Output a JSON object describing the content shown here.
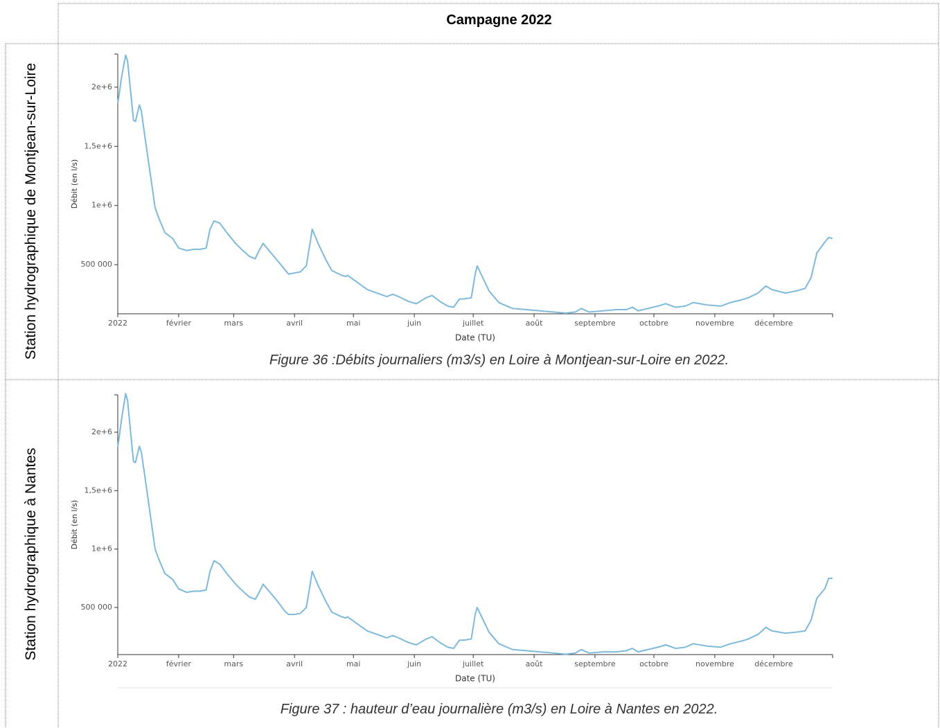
{
  "header": {
    "title": "Campagne 2022"
  },
  "rows": [
    {
      "label": "Station hydrographique de Montjean-sur-Loire",
      "caption": "Figure 36 :Débits journaliers (m3/s) en Loire à Montjean-sur-Loire en 2022."
    },
    {
      "label": "Station hydrographique à Nantes",
      "caption": "Figure 37 : hauteur d’eau journalière (m3/s) en Loire à Nantes en 2022."
    }
  ],
  "chart_data": [
    {
      "type": "line",
      "ylabel": "Débit (en l/s)",
      "xlabel": "Date (TU)",
      "color": "#7db9da",
      "xlim": [
        0,
        364
      ],
      "ylim": [
        85000,
        2280000
      ],
      "xticks": [
        {
          "value": 0,
          "label": "2022"
        },
        {
          "value": 31,
          "label": "février"
        },
        {
          "value": 59,
          "label": "mars"
        },
        {
          "value": 90,
          "label": "avril"
        },
        {
          "value": 120,
          "label": "mai"
        },
        {
          "value": 151,
          "label": "juin"
        },
        {
          "value": 181,
          "label": "juillet"
        },
        {
          "value": 212,
          "label": "août"
        },
        {
          "value": 243,
          "label": "septembre"
        },
        {
          "value": 273,
          "label": "octobre"
        },
        {
          "value": 304,
          "label": "novembre"
        },
        {
          "value": 334,
          "label": "décembre"
        }
      ],
      "yticks": [
        {
          "value": 500000,
          "label": "500 000"
        },
        {
          "value": 1000000,
          "label": "1e+6"
        },
        {
          "value": 1500000,
          "label": "1,5e+6"
        },
        {
          "value": 2000000,
          "label": "2e+6"
        }
      ],
      "x": [
        0,
        2,
        4,
        5,
        7,
        8,
        9,
        11,
        12,
        14,
        18,
        19,
        21,
        24,
        28,
        31,
        35,
        39,
        42,
        45,
        47,
        49,
        52,
        56,
        60,
        63,
        67,
        70,
        72,
        74,
        77,
        81,
        85,
        87,
        90,
        93,
        96,
        98,
        99,
        102,
        106,
        109,
        114,
        116,
        117,
        122,
        127,
        132,
        137,
        140,
        143,
        148,
        152,
        157,
        160,
        164,
        168,
        171,
        174,
        176,
        180,
        182,
        183,
        185,
        189,
        194,
        201,
        208,
        215,
        222,
        228,
        233,
        236,
        240,
        247,
        254,
        259,
        262,
        265,
        270,
        275,
        279,
        284,
        289,
        293,
        300,
        307,
        312,
        317,
        321,
        326,
        330,
        333,
        340,
        346,
        350,
        353,
        356,
        360,
        362,
        364
      ],
      "values": [
        1860000,
        2090000,
        2270000,
        2220000,
        1890000,
        1720000,
        1710000,
        1850000,
        1800000,
        1560000,
        1100000,
        980000,
        890000,
        770000,
        720000,
        640000,
        620000,
        630000,
        630000,
        640000,
        800000,
        870000,
        850000,
        760000,
        680000,
        630000,
        570000,
        550000,
        620000,
        680000,
        620000,
        540000,
        460000,
        420000,
        430000,
        440000,
        490000,
        690000,
        800000,
        680000,
        540000,
        450000,
        410000,
        400000,
        410000,
        350000,
        290000,
        260000,
        230000,
        250000,
        230000,
        190000,
        170000,
        220000,
        240000,
        190000,
        150000,
        140000,
        210000,
        210000,
        220000,
        420000,
        490000,
        420000,
        280000,
        180000,
        130000,
        120000,
        110000,
        100000,
        90000,
        100000,
        130000,
        100000,
        110000,
        120000,
        120000,
        140000,
        110000,
        130000,
        150000,
        170000,
        140000,
        150000,
        180000,
        160000,
        150000,
        180000,
        200000,
        220000,
        260000,
        320000,
        290000,
        260000,
        280000,
        300000,
        390000,
        600000,
        690000,
        730000,
        720000
      ]
    },
    {
      "type": "line",
      "ylabel": "Débit (en l/s)",
      "xlabel": "Date (TU)",
      "color": "#7db9da",
      "xlim": [
        0,
        364
      ],
      "ylim": [
        97000,
        2320000
      ],
      "xticks": [
        {
          "value": 0,
          "label": "2022"
        },
        {
          "value": 31,
          "label": "février"
        },
        {
          "value": 59,
          "label": "mars"
        },
        {
          "value": 90,
          "label": "avril"
        },
        {
          "value": 120,
          "label": "mai"
        },
        {
          "value": 151,
          "label": "juin"
        },
        {
          "value": 181,
          "label": "juillet"
        },
        {
          "value": 212,
          "label": "août"
        },
        {
          "value": 243,
          "label": "septembre"
        },
        {
          "value": 273,
          "label": "octobre"
        },
        {
          "value": 304,
          "label": "novembre"
        },
        {
          "value": 334,
          "label": "décembre"
        }
      ],
      "yticks": [
        {
          "value": 500000,
          "label": "500 000"
        },
        {
          "value": 1000000,
          "label": "1e+6"
        },
        {
          "value": 1500000,
          "label": "1,5e+6"
        },
        {
          "value": 2000000,
          "label": "2e+6"
        }
      ],
      "x": [
        0,
        2,
        4,
        5,
        7,
        8,
        9,
        11,
        12,
        14,
        18,
        19,
        21,
        24,
        28,
        31,
        35,
        39,
        42,
        45,
        47,
        49,
        52,
        56,
        60,
        63,
        67,
        70,
        72,
        74,
        77,
        81,
        85,
        87,
        90,
        93,
        96,
        98,
        99,
        102,
        106,
        109,
        114,
        116,
        117,
        122,
        127,
        132,
        137,
        140,
        143,
        148,
        152,
        157,
        160,
        164,
        168,
        171,
        174,
        176,
        180,
        182,
        183,
        185,
        189,
        194,
        201,
        208,
        215,
        222,
        228,
        233,
        236,
        240,
        247,
        254,
        259,
        262,
        265,
        270,
        275,
        279,
        284,
        289,
        293,
        300,
        307,
        312,
        317,
        321,
        326,
        330,
        333,
        340,
        346,
        350,
        353,
        356,
        360,
        362,
        364
      ],
      "values": [
        1870000,
        2120000,
        2330000,
        2270000,
        1920000,
        1750000,
        1740000,
        1880000,
        1830000,
        1600000,
        1120000,
        1000000,
        910000,
        790000,
        740000,
        660000,
        630000,
        640000,
        640000,
        650000,
        810000,
        900000,
        870000,
        780000,
        700000,
        650000,
        590000,
        570000,
        630000,
        700000,
        640000,
        560000,
        470000,
        440000,
        440000,
        450000,
        500000,
        700000,
        810000,
        690000,
        550000,
        460000,
        420000,
        410000,
        420000,
        360000,
        300000,
        270000,
        240000,
        260000,
        240000,
        200000,
        180000,
        230000,
        250000,
        200000,
        160000,
        150000,
        220000,
        220000,
        230000,
        440000,
        500000,
        430000,
        290000,
        190000,
        140000,
        130000,
        120000,
        110000,
        100000,
        110000,
        140000,
        110000,
        120000,
        120000,
        130000,
        150000,
        120000,
        140000,
        160000,
        180000,
        150000,
        160000,
        190000,
        170000,
        160000,
        190000,
        210000,
        230000,
        270000,
        330000,
        300000,
        280000,
        290000,
        300000,
        390000,
        580000,
        660000,
        750000,
        750000
      ]
    }
  ]
}
